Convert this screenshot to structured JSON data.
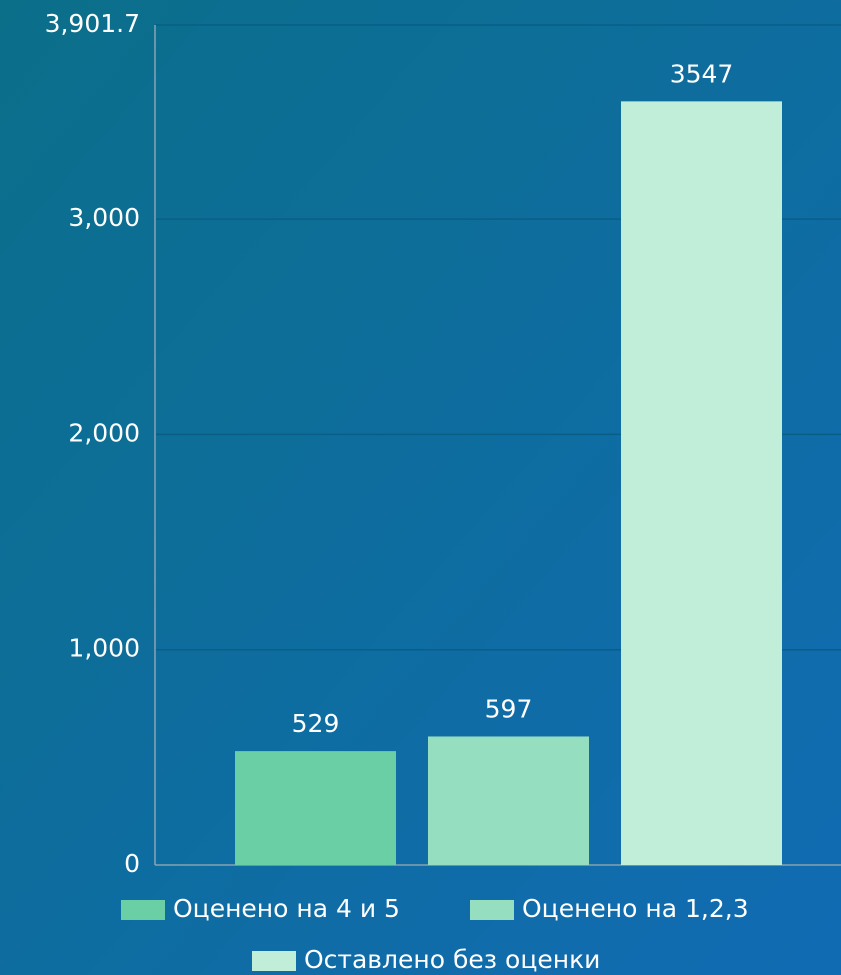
{
  "chart_data": {
    "type": "bar",
    "series": [
      {
        "name": "Оценено на 4 и 5",
        "color": "#6bcfa5",
        "values": [
          529
        ]
      },
      {
        "name": "Оценено на 1,2,3",
        "color": "#95dfc0",
        "values": [
          597
        ]
      },
      {
        "name": "Оставлено без оценки",
        "color": "#c0eed8",
        "values": [
          3547
        ]
      }
    ],
    "ylim": [
      0,
      3901.7
    ],
    "yticks": [
      0,
      {
        "value": 1000,
        "label": "1,000"
      },
      {
        "value": 2000,
        "label": "2,000"
      },
      {
        "value": 3000,
        "label": "3,000"
      },
      {
        "value": 3901.7,
        "label": "3,901.7"
      }
    ],
    "grid": true,
    "legend": "bottom"
  }
}
